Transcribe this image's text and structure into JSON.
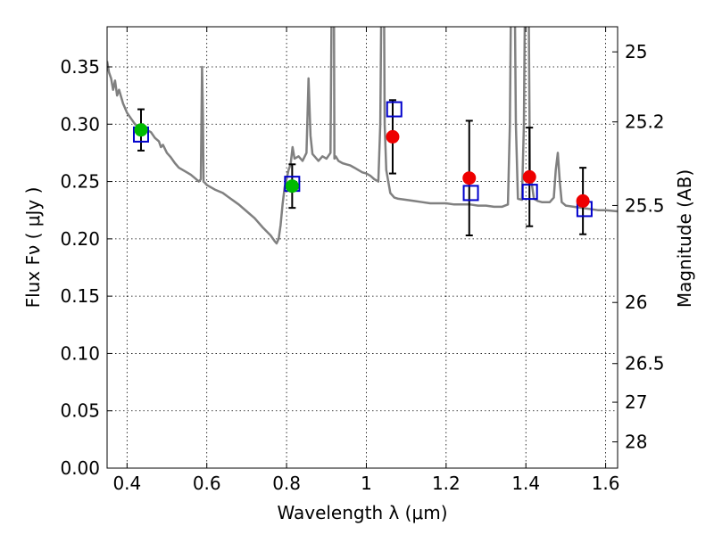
{
  "chart_data": {
    "type": "scatter",
    "xlabel": "Wavelength  λ (μm)",
    "ylabel": "Flux  Fν  ( μJy )",
    "ylabel_right": "Magnitude (AB)",
    "xlim": [
      0.35,
      1.63
    ],
    "ylim": [
      0.0,
      0.385
    ],
    "x_ticks": [
      0.4,
      0.6,
      0.8,
      1.0,
      1.2,
      1.4,
      1.6
    ],
    "x_tick_labels": [
      "0.4",
      "0.6",
      "0.8",
      "1",
      "1.2",
      "1.4",
      "1.6"
    ],
    "y_ticks": [
      0.0,
      0.05,
      0.1,
      0.15,
      0.2,
      0.25,
      0.3,
      0.35
    ],
    "y_tick_labels": [
      "0.00",
      "0.05",
      "0.10",
      "0.15",
      "0.20",
      "0.25",
      "0.30",
      "0.35"
    ],
    "right_ticks": [
      {
        "label": "25",
        "flux": 0.3631
      },
      {
        "label": "25.2",
        "flux": 0.302
      },
      {
        "label": "25.5",
        "flux": 0.2291
      },
      {
        "label": "26",
        "flux": 0.1445
      },
      {
        "label": "26.5",
        "flux": 0.0912
      },
      {
        "label": "27",
        "flux": 0.0575
      },
      {
        "label": "28",
        "flux": 0.0229
      }
    ],
    "grid": true,
    "colors": {
      "sed": "#808080",
      "model_box": "#0000cc",
      "observed_green": "#00bb00",
      "observed_red": "#ee0000",
      "errorbar": "#000000"
    },
    "series": [
      {
        "type": "errorbar",
        "points": [
          {
            "x": 0.435,
            "y": 0.295,
            "yerr_low": 0.277,
            "yerr_high": 0.313
          },
          {
            "x": 0.814,
            "y": 0.246,
            "yerr_low": 0.227,
            "yerr_high": 0.265
          },
          {
            "x": 1.066,
            "y": 0.289,
            "yerr_low": 0.257,
            "yerr_high": 0.321
          },
          {
            "x": 1.258,
            "y": 0.253,
            "yerr_low": 0.203,
            "yerr_high": 0.303
          },
          {
            "x": 1.409,
            "y": 0.254,
            "yerr_low": 0.211,
            "yerr_high": 0.297
          },
          {
            "x": 1.543,
            "y": 0.233,
            "yerr_low": 0.204,
            "yerr_high": 0.262
          }
        ]
      },
      {
        "type": "model_boxes",
        "points": [
          {
            "x": 0.435,
            "y": 0.291
          },
          {
            "x": 0.814,
            "y": 0.248
          },
          {
            "x": 1.07,
            "y": 0.313
          },
          {
            "x": 1.262,
            "y": 0.24
          },
          {
            "x": 1.41,
            "y": 0.241
          },
          {
            "x": 1.547,
            "y": 0.226
          }
        ]
      },
      {
        "type": "observed_green",
        "points": [
          {
            "x": 0.435,
            "y": 0.295
          },
          {
            "x": 0.814,
            "y": 0.246
          }
        ]
      },
      {
        "type": "observed_red",
        "points": [
          {
            "x": 1.066,
            "y": 0.289
          },
          {
            "x": 1.258,
            "y": 0.253
          },
          {
            "x": 1.409,
            "y": 0.254
          },
          {
            "x": 1.543,
            "y": 0.233
          }
        ]
      }
    ],
    "sed_curve": {
      "x": [
        0.35,
        0.355,
        0.36,
        0.365,
        0.37,
        0.375,
        0.38,
        0.39,
        0.4,
        0.41,
        0.42,
        0.43,
        0.44,
        0.45,
        0.46,
        0.47,
        0.48,
        0.485,
        0.49,
        0.5,
        0.51,
        0.52,
        0.53,
        0.54,
        0.55,
        0.56,
        0.57,
        0.58,
        0.585,
        0.588,
        0.59,
        0.592,
        0.595,
        0.6,
        0.62,
        0.64,
        0.66,
        0.68,
        0.7,
        0.72,
        0.74,
        0.76,
        0.77,
        0.775,
        0.78,
        0.785,
        0.79,
        0.795,
        0.8,
        0.805,
        0.81,
        0.815,
        0.82,
        0.83,
        0.84,
        0.85,
        0.855,
        0.86,
        0.865,
        0.87,
        0.88,
        0.89,
        0.9,
        0.91,
        0.915,
        0.918,
        0.92,
        0.923,
        0.93,
        0.94,
        0.95,
        0.96,
        0.97,
        0.98,
        0.99,
        1.0,
        1.01,
        1.02,
        1.03,
        1.035,
        1.04,
        1.043,
        1.046,
        1.05,
        1.06,
        1.07,
        1.08,
        1.1,
        1.12,
        1.14,
        1.16,
        1.18,
        1.2,
        1.22,
        1.24,
        1.26,
        1.28,
        1.3,
        1.32,
        1.34,
        1.355,
        1.36,
        1.365,
        1.37,
        1.375,
        1.38,
        1.39,
        1.395,
        1.4,
        1.405,
        1.41,
        1.42,
        1.43,
        1.44,
        1.45,
        1.46,
        1.47,
        1.475,
        1.48,
        1.485,
        1.49,
        1.5,
        1.52,
        1.54,
        1.56,
        1.58,
        1.6,
        1.63
      ],
      "y": [
        0.355,
        0.345,
        0.34,
        0.33,
        0.338,
        0.325,
        0.33,
        0.318,
        0.31,
        0.305,
        0.3,
        0.298,
        0.3,
        0.295,
        0.293,
        0.288,
        0.285,
        0.28,
        0.282,
        0.275,
        0.271,
        0.266,
        0.262,
        0.26,
        0.258,
        0.256,
        0.253,
        0.25,
        0.252,
        0.35,
        0.31,
        0.25,
        0.249,
        0.247,
        0.243,
        0.24,
        0.235,
        0.23,
        0.224,
        0.218,
        0.21,
        0.203,
        0.198,
        0.196,
        0.2,
        0.212,
        0.23,
        0.245,
        0.252,
        0.26,
        0.265,
        0.28,
        0.27,
        0.272,
        0.268,
        0.275,
        0.34,
        0.29,
        0.274,
        0.272,
        0.268,
        0.272,
        0.27,
        0.275,
        0.5,
        0.5,
        0.27,
        0.272,
        0.268,
        0.266,
        0.265,
        0.264,
        0.262,
        0.26,
        0.258,
        0.257,
        0.255,
        0.252,
        0.25,
        0.3,
        0.5,
        0.5,
        0.3,
        0.26,
        0.24,
        0.236,
        0.235,
        0.234,
        0.233,
        0.232,
        0.231,
        0.231,
        0.231,
        0.23,
        0.23,
        0.23,
        0.229,
        0.229,
        0.228,
        0.228,
        0.23,
        0.3,
        0.5,
        0.5,
        0.3,
        0.235,
        0.234,
        0.3,
        0.5,
        0.5,
        0.26,
        0.235,
        0.233,
        0.232,
        0.232,
        0.232,
        0.236,
        0.26,
        0.275,
        0.25,
        0.232,
        0.229,
        0.228,
        0.227,
        0.226,
        0.225,
        0.225,
        0.224
      ]
    }
  }
}
